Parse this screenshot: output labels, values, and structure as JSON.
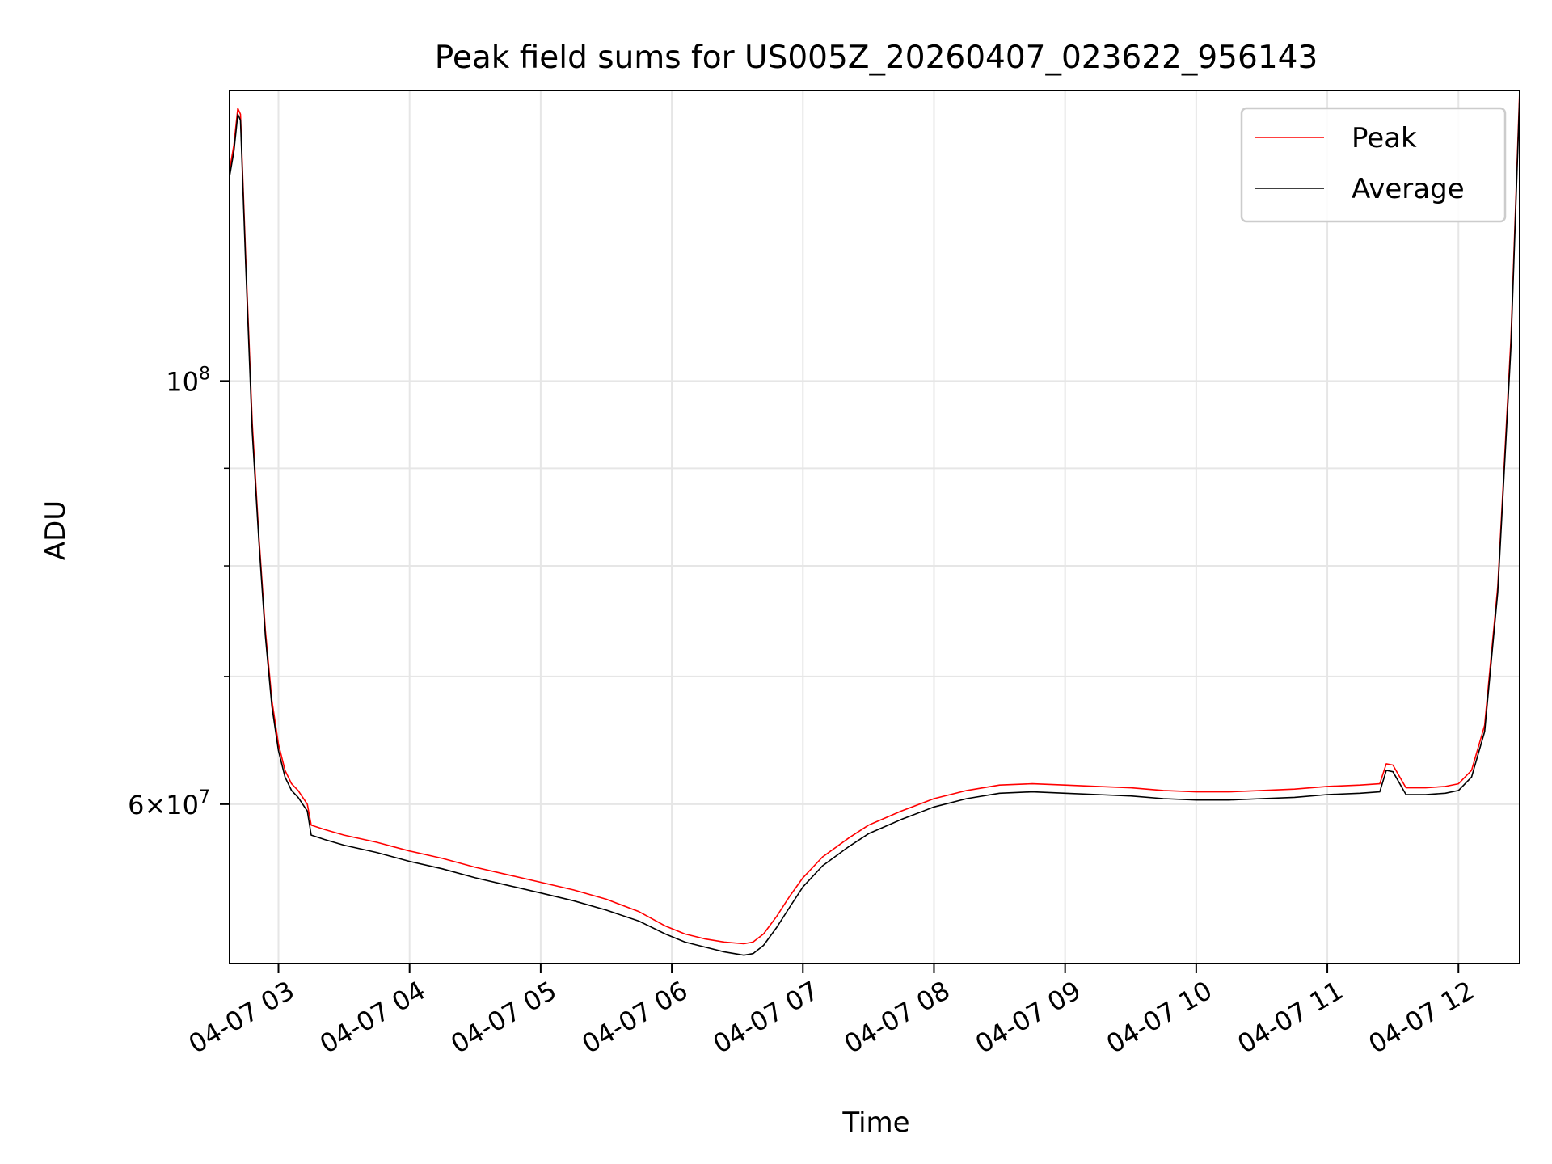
{
  "chart_data": {
    "type": "line",
    "title": "Peak field sums for US005Z_20260407_023622_956143",
    "xlabel": "Time",
    "ylabel": "ADU",
    "x_ticks": [
      "04-07 03",
      "04-07 04",
      "04-07 05",
      "04-07 06",
      "04-07 07",
      "04-07 08",
      "04-07 09",
      "04-07 10",
      "04-07 11",
      "04-07 12"
    ],
    "x_tick_hours": [
      3,
      4,
      5,
      6,
      7,
      8,
      9,
      10,
      11,
      12
    ],
    "y_ticks": [
      {
        "value": 100000000,
        "base": "10",
        "exp": "8"
      },
      {
        "value": 60000000,
        "base": "6×10",
        "exp": "7"
      }
    ],
    "y_minor_ticks": [
      70000000,
      80000000,
      90000000
    ],
    "xlim": [
      2.627,
      12.467
    ],
    "ylim": [
      49500000,
      142000000
    ],
    "y_scale": "log",
    "grid": true,
    "legend": {
      "position": "top-right",
      "entries": [
        "Peak",
        "Average"
      ]
    },
    "series": [
      {
        "name": "Peak",
        "color": "#ff0000",
        "x": [
          2.627,
          2.66,
          2.69,
          2.71,
          2.75,
          2.8,
          2.85,
          2.9,
          2.95,
          3.0,
          3.05,
          3.1,
          3.15,
          3.22,
          3.25,
          3.35,
          3.5,
          3.75,
          4.0,
          4.25,
          4.5,
          4.75,
          5.0,
          5.25,
          5.5,
          5.75,
          5.95,
          6.1,
          6.25,
          6.4,
          6.55,
          6.62,
          6.7,
          6.8,
          6.9,
          7.0,
          7.15,
          7.35,
          7.5,
          7.75,
          8.0,
          8.25,
          8.5,
          8.75,
          9.0,
          9.25,
          9.5,
          9.75,
          10.0,
          10.25,
          10.5,
          10.75,
          11.0,
          11.25,
          11.4,
          11.45,
          11.5,
          11.6,
          11.75,
          11.9,
          12.0,
          12.1,
          12.2,
          12.3,
          12.4,
          12.467
        ],
        "y": [
          129000000,
          133000000,
          139000000,
          138000000,
          116000000,
          95000000,
          83000000,
          74000000,
          68000000,
          64500000,
          62500000,
          61500000,
          61000000,
          60000000,
          58500000,
          58200000,
          57800000,
          57300000,
          56700000,
          56200000,
          55600000,
          55100000,
          54600000,
          54100000,
          53500000,
          52700000,
          51800000,
          51300000,
          51000000,
          50800000,
          50700000,
          50800000,
          51300000,
          52400000,
          53700000,
          54900000,
          56300000,
          57600000,
          58500000,
          59500000,
          60400000,
          61000000,
          61400000,
          61500000,
          61400000,
          61300000,
          61200000,
          61000000,
          60900000,
          60900000,
          61000000,
          61100000,
          61300000,
          61400000,
          61500000,
          63000000,
          62900000,
          61200000,
          61200000,
          61300000,
          61500000,
          62500000,
          66000000,
          78000000,
          105000000,
          142000000
        ]
      },
      {
        "name": "Average",
        "color": "#000000",
        "x": [
          2.627,
          2.66,
          2.69,
          2.71,
          2.75,
          2.8,
          2.85,
          2.9,
          2.95,
          3.0,
          3.05,
          3.1,
          3.15,
          3.22,
          3.25,
          3.35,
          3.5,
          3.75,
          4.0,
          4.25,
          4.5,
          4.75,
          5.0,
          5.25,
          5.5,
          5.75,
          5.95,
          6.1,
          6.25,
          6.4,
          6.55,
          6.62,
          6.7,
          6.8,
          6.9,
          7.0,
          7.15,
          7.35,
          7.5,
          7.75,
          8.0,
          8.25,
          8.5,
          8.75,
          9.0,
          9.25,
          9.5,
          9.75,
          10.0,
          10.25,
          10.5,
          10.75,
          11.0,
          11.25,
          11.4,
          11.45,
          11.5,
          11.6,
          11.75,
          11.9,
          12.0,
          12.1,
          12.2,
          12.3,
          12.4,
          12.467
        ],
        "y": [
          128000000,
          132000000,
          138000000,
          137000000,
          115000000,
          94000000,
          82500000,
          73500000,
          67500000,
          64000000,
          62000000,
          61000000,
          60500000,
          59500000,
          57800000,
          57500000,
          57100000,
          56600000,
          56000000,
          55500000,
          54900000,
          54400000,
          53900000,
          53400000,
          52800000,
          52100000,
          51300000,
          50800000,
          50500000,
          50200000,
          50000000,
          50100000,
          50600000,
          51700000,
          53000000,
          54300000,
          55700000,
          57000000,
          57900000,
          58900000,
          59800000,
          60400000,
          60800000,
          60900000,
          60800000,
          60700000,
          60600000,
          60400000,
          60300000,
          60300000,
          60400000,
          60500000,
          60700000,
          60800000,
          60900000,
          62500000,
          62400000,
          60700000,
          60700000,
          60800000,
          61000000,
          62000000,
          65500000,
          77500000,
          104000000,
          141000000
        ]
      }
    ]
  }
}
